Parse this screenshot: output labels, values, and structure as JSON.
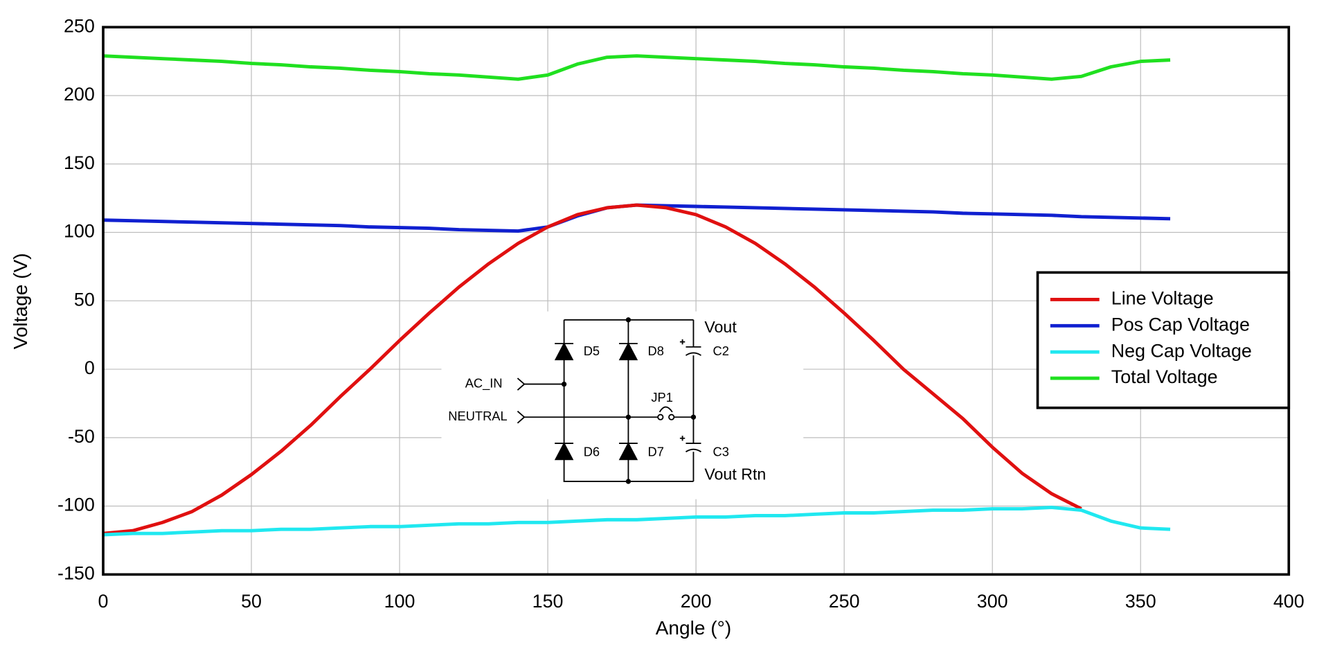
{
  "chart_data": {
    "type": "line",
    "x_label": "Angle (°)",
    "y_label": "Voltage (V)",
    "x": [
      0,
      10,
      20,
      30,
      40,
      50,
      60,
      70,
      80,
      90,
      100,
      110,
      120,
      130,
      140,
      150,
      160,
      170,
      180,
      190,
      200,
      210,
      220,
      230,
      240,
      250,
      260,
      270,
      280,
      290,
      300,
      310,
      320,
      330,
      340,
      350,
      360
    ],
    "series": [
      {
        "name": "Line Voltage",
        "color": "#e01010",
        "values": [
          -120,
          -118,
          -112,
          -104,
          -92,
          -77,
          -60,
          -41,
          -20,
          0,
          21,
          41,
          60,
          77,
          92,
          104,
          113,
          118,
          120,
          118,
          113,
          104,
          92,
          77,
          60,
          41,
          21,
          0,
          -18,
          -36,
          -57,
          -76,
          -91,
          -102,
          null,
          null,
          null
        ]
      },
      {
        "name": "Pos Cap Voltage",
        "color": "#1020d0",
        "values": [
          109,
          108.5,
          108,
          107.5,
          107,
          106.5,
          106,
          105.5,
          105,
          104,
          103.5,
          103,
          102,
          101.5,
          101,
          104,
          112,
          118,
          120,
          119.5,
          119,
          118.5,
          118,
          117.5,
          117,
          116.5,
          116,
          115.5,
          115,
          114,
          113.5,
          113,
          112.5,
          111.5,
          111,
          110.5,
          110
        ]
      },
      {
        "name": "Neg Cap Voltage",
        "color": "#20e8f0",
        "values": [
          -121,
          -120,
          -120,
          -119,
          -118,
          -118,
          -117,
          -117,
          -116,
          -115,
          -115,
          -114,
          -113,
          -113,
          -112,
          -112,
          -111,
          -110,
          -110,
          -109,
          -108,
          -108,
          -107,
          -107,
          -106,
          -105,
          -105,
          -104,
          -103,
          -103,
          -102,
          -102,
          -101,
          -103,
          -111,
          -116,
          -117
        ]
      },
      {
        "name": "Total Voltage",
        "color": "#20e020",
        "values": [
          229,
          228,
          227,
          226,
          225,
          223.5,
          222.5,
          221,
          220,
          218.5,
          217.5,
          216,
          215,
          213.5,
          212,
          215,
          223,
          228,
          229,
          228,
          227,
          226,
          225,
          223.5,
          222.5,
          221,
          220,
          218.5,
          217.5,
          216,
          215,
          213.5,
          212,
          214,
          221,
          225,
          226
        ]
      }
    ],
    "xlim": [
      0,
      400
    ],
    "xticks": [
      0,
      50,
      100,
      150,
      200,
      250,
      300,
      350,
      400
    ],
    "ylim": [
      -150,
      250
    ],
    "yticks": [
      -150,
      -100,
      -50,
      0,
      50,
      100,
      150,
      200,
      250
    ],
    "grid": true,
    "legend": "right",
    "schematic_labels": [
      "Vout",
      "D5",
      "D8",
      "C2",
      "AC_IN",
      "NEUTRAL",
      "JP1",
      "D6",
      "D7",
      "C3",
      "Vout Rtn"
    ]
  }
}
